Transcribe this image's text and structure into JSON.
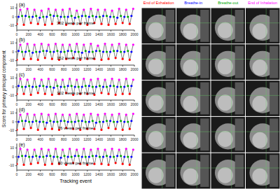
{
  "ylabel": "Score for primary principal component",
  "xlabel": "Tracking event",
  "image_columns": [
    {
      "text": "End of Exhalation",
      "color": "#f00"
    },
    {
      "text": "Breathe-in",
      "color": "#00f"
    },
    {
      "text": "Breathe-out",
      "color": "#0a0"
    },
    {
      "text": "End of Inhalation",
      "color": "#f0f"
    }
  ],
  "chart_data": [
    {
      "type": "line",
      "label": "(a)",
      "annotation": "302 views per frame",
      "color": "#404040",
      "xlim": [
        0,
        2000
      ],
      "xticks": [
        0,
        200,
        400,
        600,
        800,
        1000,
        1200,
        1400,
        1600,
        1800,
        2000
      ],
      "ylim": [
        -15,
        15
      ],
      "yticks": [
        -10,
        0,
        10
      ],
      "x": [
        0,
        30,
        60,
        90,
        120,
        150,
        180,
        210,
        240,
        270,
        300,
        330,
        360,
        390,
        420,
        450,
        480,
        510,
        540,
        570,
        600,
        630,
        660,
        690,
        720,
        750,
        780,
        810,
        840,
        870,
        900,
        930,
        960,
        990,
        1020,
        1050,
        1080,
        1110,
        1140,
        1170,
        1200,
        1230,
        1260,
        1290,
        1320,
        1350,
        1380,
        1410,
        1440,
        1470,
        1500,
        1530,
        1560,
        1590,
        1620,
        1650,
        1680,
        1710,
        1740,
        1770,
        1800,
        1830,
        1860,
        1890,
        1920,
        1950,
        1980
      ],
      "values": [
        -8,
        0,
        8,
        1,
        -9,
        1,
        9,
        0,
        -7,
        0,
        8,
        1,
        -8,
        -1,
        7,
        0,
        -9,
        0,
        9,
        2,
        -8,
        1,
        8,
        1,
        -7,
        0,
        8,
        0,
        -9,
        0,
        9,
        1,
        -8,
        -1,
        7,
        0,
        -8,
        1,
        8,
        1,
        -9,
        0,
        9,
        1,
        -7,
        0,
        8,
        0,
        -8,
        1,
        8,
        1,
        -9,
        0,
        7,
        0,
        -8,
        -1,
        9,
        1,
        -7,
        0,
        8,
        0,
        -8,
        1,
        9
      ],
      "colors": [
        "#f00",
        "#00f",
        "#f0f",
        "#0a0",
        "#f00",
        "#00f",
        "#f0f",
        "#0a0",
        "#f00",
        "#00f",
        "#f0f",
        "#0a0",
        "#f00",
        "#00f",
        "#f0f",
        "#0a0",
        "#f00",
        "#00f",
        "#f0f",
        "#0a0",
        "#f00",
        "#00f",
        "#f0f",
        "#0a0",
        "#f00",
        "#00f",
        "#f0f",
        "#0a0",
        "#f00",
        "#00f",
        "#f0f",
        "#0a0",
        "#f00",
        "#00f",
        "#f0f",
        "#0a0",
        "#f00",
        "#00f",
        "#f0f",
        "#0a0",
        "#f00",
        "#00f",
        "#f0f",
        "#0a0",
        "#f00",
        "#00f",
        "#f0f",
        "#0a0",
        "#f00",
        "#00f",
        "#f0f",
        "#0a0",
        "#f00",
        "#00f",
        "#f0f",
        "#0a0",
        "#f00",
        "#00f",
        "#f0f",
        "#0a0",
        "#f00",
        "#00f",
        "#f0f",
        "#0a0",
        "#f00",
        "#00f",
        "#f0f"
      ]
    },
    {
      "type": "line",
      "label": "(b)",
      "annotation": "152 views per frame",
      "color": "#404040",
      "xlim": [
        0,
        2000
      ],
      "xticks": [
        0,
        200,
        400,
        600,
        800,
        1000,
        1200,
        1400,
        1600,
        1800,
        2000
      ],
      "ylim": [
        -15,
        15
      ],
      "yticks": [
        -10,
        0,
        10
      ],
      "x": [
        0,
        30,
        60,
        90,
        120,
        150,
        180,
        210,
        240,
        270,
        300,
        330,
        360,
        390,
        420,
        450,
        480,
        510,
        540,
        570,
        600,
        630,
        660,
        690,
        720,
        750,
        780,
        810,
        840,
        870,
        900,
        930,
        960,
        990,
        1020,
        1050,
        1080,
        1110,
        1140,
        1170,
        1200,
        1230,
        1260,
        1290,
        1320,
        1350,
        1380,
        1410,
        1440,
        1470,
        1500,
        1530,
        1560,
        1590,
        1620,
        1650,
        1680,
        1710,
        1740,
        1770,
        1800,
        1830,
        1860,
        1890,
        1920,
        1950,
        1980
      ],
      "values": [
        -9,
        1,
        8,
        0,
        -8,
        0,
        9,
        1,
        -8,
        -1,
        8,
        0,
        -9,
        0,
        9,
        1,
        -7,
        1,
        8,
        0,
        -8,
        0,
        9,
        1,
        -9,
        0,
        8,
        0,
        -8,
        1,
        8,
        1,
        -7,
        0,
        9,
        0,
        -9,
        -1,
        8,
        1,
        -8,
        0,
        9,
        0,
        -8,
        1,
        7,
        1,
        -9,
        0,
        9,
        0,
        -8,
        0,
        8,
        1,
        -7,
        1,
        9,
        0,
        -8,
        0,
        8,
        1,
        -9,
        0,
        8
      ],
      "colors": [
        "#f00",
        "#00f",
        "#f0f",
        "#0a0",
        "#f00",
        "#00f",
        "#f0f",
        "#0a0",
        "#f00",
        "#00f",
        "#f0f",
        "#0a0",
        "#f00",
        "#00f",
        "#f0f",
        "#0a0",
        "#f00",
        "#00f",
        "#f0f",
        "#0a0",
        "#f00",
        "#00f",
        "#f0f",
        "#0a0",
        "#f00",
        "#00f",
        "#f0f",
        "#0a0",
        "#f00",
        "#00f",
        "#f0f",
        "#0a0",
        "#f00",
        "#00f",
        "#f0f",
        "#0a0",
        "#f00",
        "#00f",
        "#f0f",
        "#0a0",
        "#f00",
        "#00f",
        "#f0f",
        "#0a0",
        "#f00",
        "#00f",
        "#f0f",
        "#0a0",
        "#f00",
        "#00f",
        "#f0f",
        "#0a0",
        "#f00",
        "#00f",
        "#f0f",
        "#0a0",
        "#f00",
        "#00f",
        "#f0f",
        "#0a0",
        "#f00",
        "#00f",
        "#f0f",
        "#0a0",
        "#f00",
        "#00f",
        "#f0f"
      ]
    },
    {
      "type": "line",
      "label": "(c)",
      "annotation": "102 views per frame",
      "color": "#404040",
      "xlim": [
        0,
        2000
      ],
      "xticks": [
        0,
        200,
        400,
        600,
        800,
        1000,
        1200,
        1400,
        1600,
        1800,
        2000
      ],
      "ylim": [
        -15,
        15
      ],
      "yticks": [
        -10,
        0,
        10
      ],
      "x": [
        0,
        30,
        60,
        90,
        120,
        150,
        180,
        210,
        240,
        270,
        300,
        330,
        360,
        390,
        420,
        450,
        480,
        510,
        540,
        570,
        600,
        630,
        660,
        690,
        720,
        750,
        780,
        810,
        840,
        870,
        900,
        930,
        960,
        990,
        1020,
        1050,
        1080,
        1110,
        1140,
        1170,
        1200,
        1230,
        1260,
        1290,
        1320,
        1350,
        1380,
        1410,
        1440,
        1470,
        1500,
        1530,
        1560,
        1590,
        1620,
        1650,
        1680,
        1710,
        1740,
        1770,
        1800,
        1830,
        1860,
        1890,
        1920,
        1950,
        1980
      ],
      "values": [
        -8,
        1,
        9,
        0,
        -8,
        0,
        8,
        1,
        -9,
        0,
        9,
        0,
        -7,
        1,
        8,
        1,
        -8,
        0,
        9,
        0,
        -9,
        -1,
        8,
        1,
        -8,
        0,
        8,
        0,
        -7,
        1,
        9,
        1,
        -9,
        0,
        8,
        0,
        -8,
        0,
        9,
        1,
        -8,
        1,
        8,
        0,
        -9,
        0,
        9,
        1,
        -7,
        0,
        8,
        0,
        -8,
        1,
        9,
        1,
        -9,
        0,
        8,
        0,
        -8,
        0,
        9,
        1,
        -8,
        1,
        8
      ],
      "colors": [
        "#f00",
        "#00f",
        "#f0f",
        "#0a0",
        "#f00",
        "#00f",
        "#f0f",
        "#0a0",
        "#f00",
        "#00f",
        "#f0f",
        "#0a0",
        "#f00",
        "#00f",
        "#f0f",
        "#0a0",
        "#f00",
        "#00f",
        "#f0f",
        "#0a0",
        "#f00",
        "#00f",
        "#f0f",
        "#0a0",
        "#f00",
        "#00f",
        "#f0f",
        "#0a0",
        "#f00",
        "#00f",
        "#f0f",
        "#0a0",
        "#f00",
        "#00f",
        "#f0f",
        "#0a0",
        "#f00",
        "#00f",
        "#f0f",
        "#0a0",
        "#f00",
        "#00f",
        "#f0f",
        "#0a0",
        "#f00",
        "#00f",
        "#f0f",
        "#0a0",
        "#f00",
        "#00f",
        "#f0f",
        "#0a0",
        "#f00",
        "#00f",
        "#f0f",
        "#0a0",
        "#f00",
        "#00f",
        "#f0f",
        "#0a0",
        "#f00",
        "#00f",
        "#f0f",
        "#0a0",
        "#f00",
        "#00f",
        "#f0f"
      ]
    },
    {
      "type": "line",
      "label": "(d)",
      "annotation": "76 views per frame",
      "color": "#404040",
      "xlim": [
        0,
        2000
      ],
      "xticks": [
        0,
        200,
        400,
        600,
        800,
        1000,
        1200,
        1400,
        1600,
        1800,
        2000
      ],
      "ylim": [
        -15,
        15
      ],
      "yticks": [
        -10,
        0,
        10
      ],
      "x": [
        0,
        30,
        60,
        90,
        120,
        150,
        180,
        210,
        240,
        270,
        300,
        330,
        360,
        390,
        420,
        450,
        480,
        510,
        540,
        570,
        600,
        630,
        660,
        690,
        720,
        750,
        780,
        810,
        840,
        870,
        900,
        930,
        960,
        990,
        1020,
        1050,
        1080,
        1110,
        1140,
        1170,
        1200,
        1230,
        1260,
        1290,
        1320,
        1350,
        1380,
        1410,
        1440,
        1470,
        1500,
        1530,
        1560,
        1590,
        1620,
        1650,
        1680,
        1710,
        1740,
        1770,
        1800,
        1830,
        1860,
        1890,
        1920,
        1950,
        1980
      ],
      "values": [
        -9,
        0,
        8,
        1,
        -8,
        1,
        9,
        0,
        -7,
        0,
        8,
        1,
        -9,
        0,
        9,
        0,
        -8,
        -1,
        8,
        1,
        -8,
        0,
        9,
        0,
        -9,
        1,
        8,
        1,
        -7,
        0,
        8,
        0,
        -8,
        0,
        9,
        1,
        -9,
        1,
        8,
        0,
        -8,
        0,
        9,
        1,
        -8,
        -1,
        8,
        0,
        -9,
        0,
        9,
        1,
        -7,
        1,
        8,
        0,
        -8,
        0,
        9,
        1,
        -9,
        0,
        8,
        0,
        -8,
        1,
        9
      ],
      "colors": [
        "#f00",
        "#00f",
        "#f0f",
        "#0a0",
        "#f00",
        "#00f",
        "#f0f",
        "#0a0",
        "#f00",
        "#00f",
        "#f0f",
        "#0a0",
        "#f00",
        "#00f",
        "#f0f",
        "#0a0",
        "#f00",
        "#00f",
        "#f0f",
        "#0a0",
        "#f00",
        "#00f",
        "#f0f",
        "#0a0",
        "#f00",
        "#00f",
        "#f0f",
        "#0a0",
        "#f00",
        "#00f",
        "#f0f",
        "#0a0",
        "#f00",
        "#00f",
        "#f0f",
        "#0a0",
        "#f00",
        "#00f",
        "#f0f",
        "#0a0",
        "#f00",
        "#00f",
        "#f0f",
        "#0a0",
        "#f00",
        "#00f",
        "#f0f",
        "#0a0",
        "#f00",
        "#00f",
        "#f0f",
        "#0a0",
        "#f00",
        "#00f",
        "#f0f",
        "#0a0",
        "#f00",
        "#00f",
        "#f0f",
        "#0a0",
        "#f00",
        "#00f",
        "#f0f",
        "#0a0",
        "#f00",
        "#00f",
        "#f0f"
      ]
    },
    {
      "type": "line",
      "label": "(e)",
      "annotation": "60 views per frame",
      "color": "#404040",
      "xlim": [
        0,
        2000
      ],
      "xticks": [
        0,
        200,
        400,
        600,
        800,
        1000,
        1200,
        1400,
        1600,
        1800,
        2000
      ],
      "ylim": [
        -15,
        15
      ],
      "yticks": [
        -10,
        0,
        10
      ],
      "x": [
        0,
        30,
        60,
        90,
        120,
        150,
        180,
        210,
        240,
        270,
        300,
        330,
        360,
        390,
        420,
        450,
        480,
        510,
        540,
        570,
        600,
        630,
        660,
        690,
        720,
        750,
        780,
        810,
        840,
        870,
        900,
        930,
        960,
        990,
        1020,
        1050,
        1080,
        1110,
        1140,
        1170,
        1200,
        1230,
        1260,
        1290,
        1320,
        1350,
        1380,
        1410,
        1440,
        1470,
        1500,
        1530,
        1560,
        1590,
        1620,
        1650,
        1680,
        1710,
        1740,
        1770,
        1800,
        1830,
        1860,
        1890,
        1920,
        1950,
        1980
      ],
      "values": [
        -8,
        0,
        9,
        1,
        -9,
        1,
        8,
        0,
        -8,
        0,
        8,
        1,
        -7,
        0,
        9,
        0,
        -9,
        1,
        8,
        1,
        -8,
        0,
        9,
        0,
        -8,
        -1,
        8,
        1,
        -9,
        0,
        9,
        0,
        -7,
        1,
        8,
        1,
        -8,
        0,
        9,
        0,
        -9,
        0,
        8,
        1,
        -8,
        1,
        9,
        0,
        -8,
        0,
        8,
        1,
        -9,
        0,
        9,
        0,
        -7,
        1,
        8,
        1,
        -8,
        0,
        9,
        0,
        -9,
        0,
        8
      ],
      "colors": [
        "#f00",
        "#00f",
        "#f0f",
        "#0a0",
        "#f00",
        "#00f",
        "#f0f",
        "#0a0",
        "#f00",
        "#00f",
        "#f0f",
        "#0a0",
        "#f00",
        "#00f",
        "#f0f",
        "#0a0",
        "#f00",
        "#00f",
        "#f0f",
        "#0a0",
        "#f00",
        "#00f",
        "#f0f",
        "#0a0",
        "#f00",
        "#00f",
        "#f0f",
        "#0a0",
        "#f00",
        "#00f",
        "#f0f",
        "#0a0",
        "#f00",
        "#00f",
        "#f0f",
        "#0a0",
        "#f00",
        "#00f",
        "#f0f",
        "#0a0",
        "#f00",
        "#00f",
        "#f0f",
        "#0a0",
        "#f00",
        "#00f",
        "#f0f",
        "#0a0",
        "#f00",
        "#00f",
        "#f0f",
        "#0a0",
        "#f00",
        "#00f",
        "#f0f",
        "#0a0",
        "#f00",
        "#00f",
        "#f0f",
        "#0a0",
        "#f00",
        "#00f",
        "#f0f",
        "#0a0",
        "#f00",
        "#00f",
        "#f0f"
      ]
    }
  ]
}
